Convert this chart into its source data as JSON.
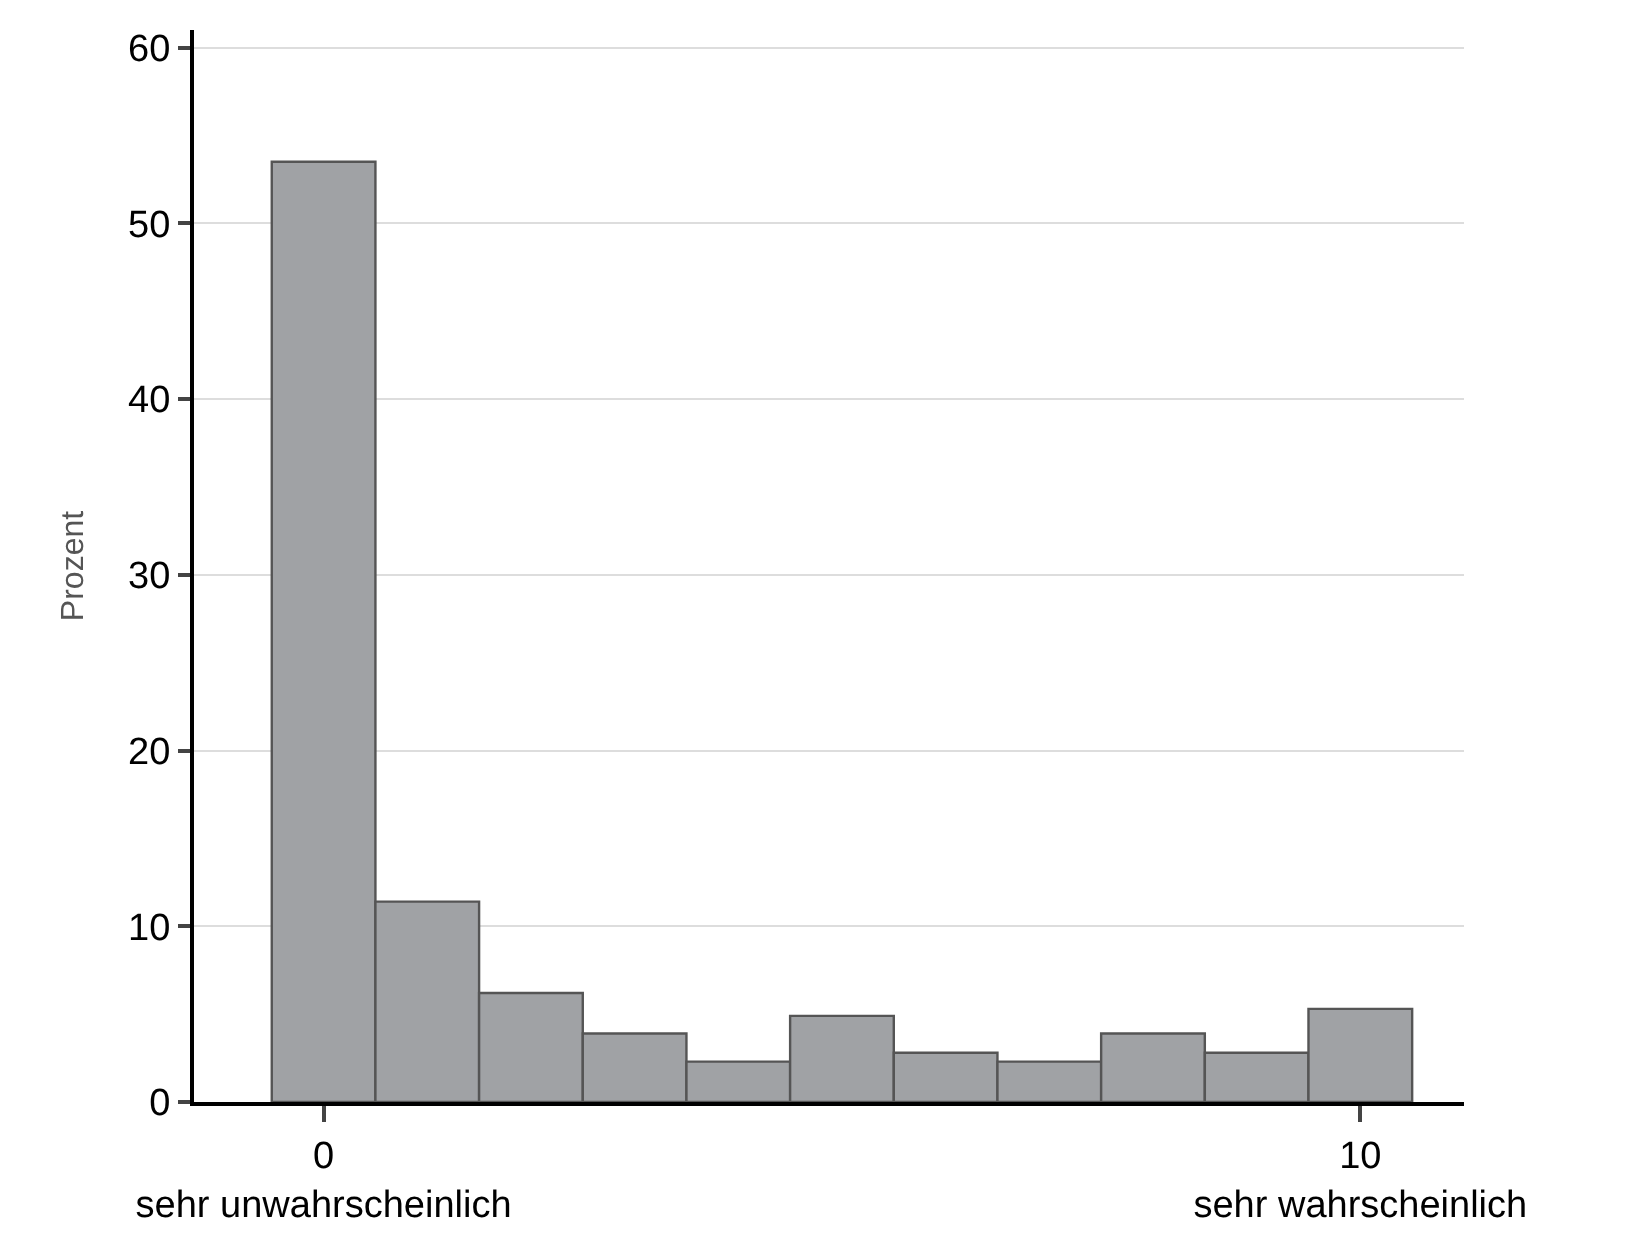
{
  "chart_data": {
    "type": "histogram",
    "ylabel": "Prozent",
    "bins": [
      -0.5,
      0.5,
      1.5,
      2.5,
      3.5,
      4.5,
      5.5,
      6.5,
      7.5,
      8.5,
      9.5,
      10.5
    ],
    "values": [
      53.5,
      11.4,
      6.2,
      3.9,
      2.3,
      4.9,
      2.8,
      2.3,
      3.9,
      2.8,
      5.3
    ],
    "color": "#a0a2a5",
    "xlim": [
      -1.25,
      11
    ],
    "xticks": [
      {
        "value": 0,
        "label": "0\nsehr unwahrscheinlich"
      },
      {
        "value": 10,
        "label": "10\nsehr wahrscheinlich"
      }
    ],
    "ylim": [
      0,
      61
    ],
    "yticks": [
      0,
      10,
      20,
      30,
      40,
      50,
      60
    ],
    "grid": "y"
  }
}
